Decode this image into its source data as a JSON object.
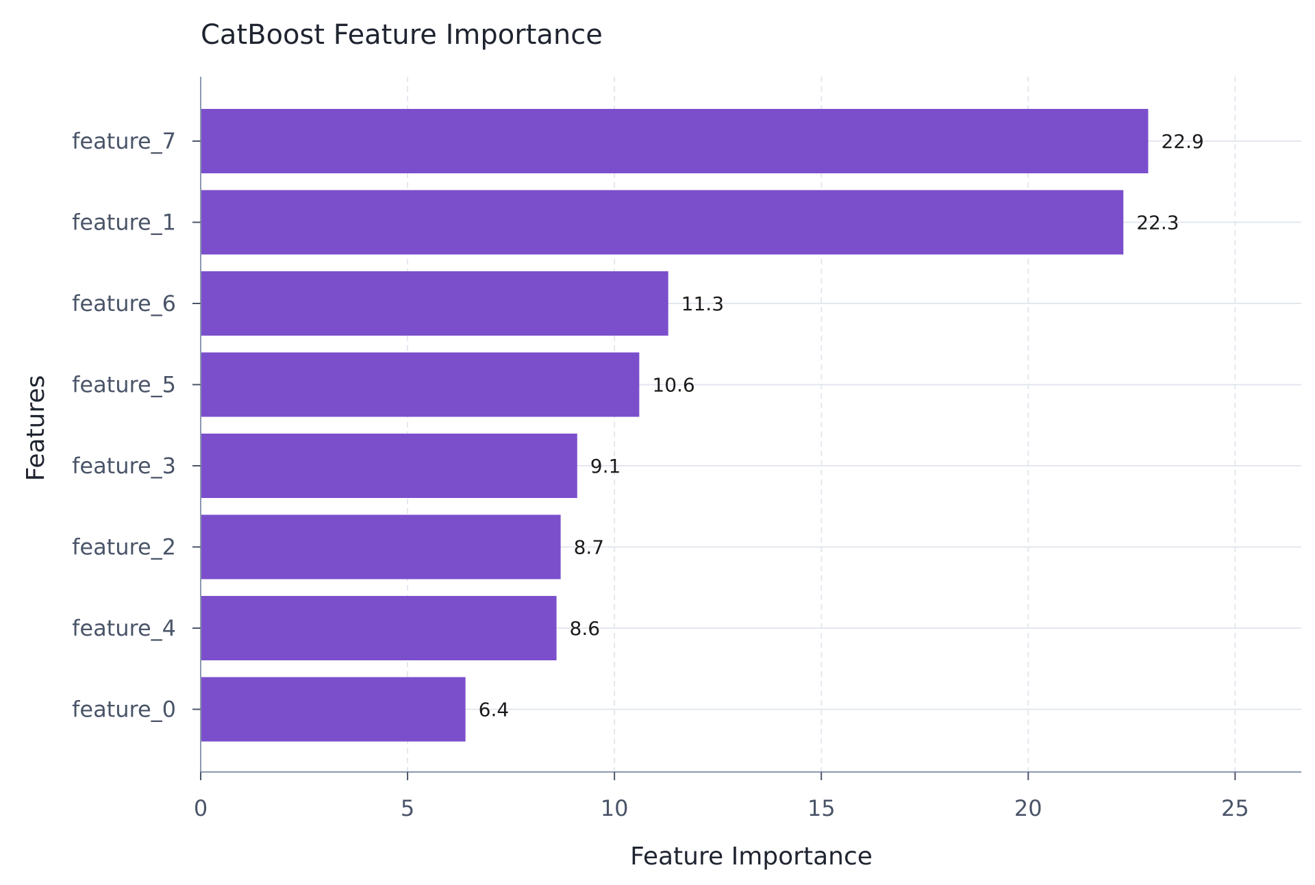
{
  "chart_data": {
    "type": "bar",
    "orientation": "horizontal",
    "title": "CatBoost Feature Importance",
    "xlabel": "Feature Importance",
    "ylabel": "Features",
    "categories": [
      "feature_7",
      "feature_1",
      "feature_6",
      "feature_5",
      "feature_3",
      "feature_2",
      "feature_4",
      "feature_0"
    ],
    "values": [
      22.9,
      22.3,
      11.3,
      10.6,
      9.1,
      8.7,
      8.6,
      6.4
    ],
    "data_labels": [
      "22.9",
      "22.3",
      "11.3",
      "10.6",
      "9.1",
      "8.7",
      "8.6",
      "6.4"
    ],
    "xlim": [
      0,
      26.6
    ],
    "xticks": [
      0,
      5,
      10,
      15,
      20,
      25
    ],
    "xtick_labels": [
      "0",
      "5",
      "10",
      "15",
      "20",
      "25"
    ],
    "grid": true,
    "colors": {
      "bar": "#7b4fcc",
      "grid": "#e3e7ee",
      "axis": "#8a97ad"
    }
  }
}
